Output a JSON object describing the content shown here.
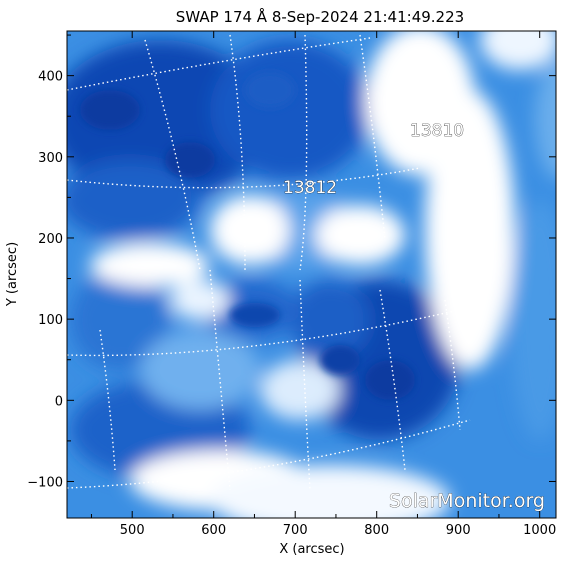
{
  "title": "SWAP 174 Å  8-Sep-2024 21:41:49.223",
  "x_axis": {
    "label": "X (arcsec)",
    "range": [
      420,
      1020
    ],
    "ticks": [
      500,
      600,
      700,
      800,
      900,
      1000
    ],
    "tick_labels": [
      "500",
      "600",
      "700",
      "800",
      "900",
      "1000"
    ]
  },
  "y_axis": {
    "label": "Y (arcsec)",
    "range": [
      -145,
      455
    ],
    "ticks": [
      -100,
      0,
      100,
      200,
      300,
      400
    ],
    "tick_labels": [
      "−100",
      "0",
      "100",
      "200",
      "300",
      "400"
    ]
  },
  "active_regions": [
    {
      "id": "13810",
      "label": "13810",
      "x": 870,
      "y": 330
    },
    {
      "id": "13812",
      "label": "13812",
      "x": 715,
      "y": 260
    }
  ],
  "watermark": "SolarMonitor.org",
  "colors": {
    "deep": "#0a3fa8",
    "mid": "#1f78d8",
    "light": "#7fb8f0",
    "bright": "#ffffff",
    "grid": "#ffffff"
  }
}
